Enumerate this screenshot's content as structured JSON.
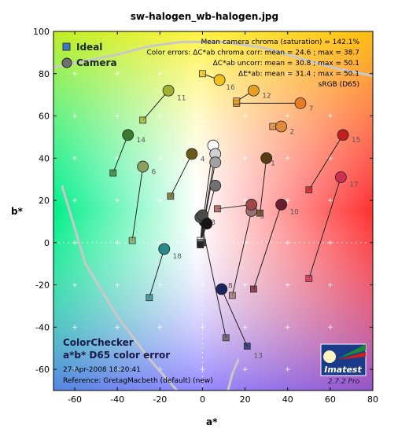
{
  "title": "sw-halogen_wb-halogen.jpg",
  "chart_data": {
    "type": "scatter",
    "xlabel": "a*",
    "ylabel": "b*",
    "xlim": [
      -70,
      80
    ],
    "ylim": [
      -70,
      100
    ],
    "xticks": [
      -60,
      -40,
      -20,
      0,
      20,
      40,
      60,
      80
    ],
    "yticks": [
      -60,
      -40,
      -20,
      0,
      20,
      40,
      60,
      80,
      100
    ],
    "legend": [
      {
        "label": "Ideal",
        "marker": "square"
      },
      {
        "label": "Camera",
        "marker": "circle"
      }
    ],
    "stats": [
      "Mean camera chroma (saturation) = 142.1%",
      "Color errors:  ΔC*ab chroma corr:  mean = 24.6 ;  max = 38.7",
      "ΔC*ab uncorr:  mean = 30.8 ;  max = 50.1",
      "ΔE*ab:  mean = 31.4 ;  max = 50.1",
      "sRGB (D65)"
    ],
    "bottom_text": {
      "line1": "ColorChecker",
      "line2": "a*b* D65 color error",
      "date": "27-Apr-2008 18:20:41",
      "reference": "Reference: GretagMacbeth (default) (new)"
    },
    "logo": {
      "name": "Imatest",
      "version": "2.7.2  Pro"
    },
    "patches": [
      {
        "id": 1,
        "ideal": [
          27,
          14
        ],
        "camera": [
          30,
          40
        ],
        "color": "#5a3a12"
      },
      {
        "id": 2,
        "ideal": [
          33,
          55
        ],
        "camera": [
          37,
          55
        ],
        "color": "#e08a3a"
      },
      {
        "id": 3,
        "ideal": [
          0,
          0
        ],
        "camera": [
          1,
          10
        ],
        "color": "#111111"
      },
      {
        "id": 4,
        "ideal": [
          -15,
          22
        ],
        "camera": [
          -5,
          42
        ],
        "color": "#6a5a18"
      },
      {
        "id": 5,
        "ideal": [
          14,
          -25
        ],
        "camera": [
          23,
          15
        ],
        "color": "#9a7070"
      },
      {
        "id": 6,
        "ideal": [
          -33,
          1
        ],
        "camera": [
          -28,
          36
        ],
        "color": "#8aa060"
      },
      {
        "id": 7,
        "ideal": [
          16,
          66
        ],
        "camera": [
          46,
          66
        ],
        "color": "#e87b25"
      },
      {
        "id": 8,
        "ideal": [
          11,
          -45
        ],
        "camera": [
          -1,
          12
        ],
        "color": "#555555"
      },
      {
        "id": 9,
        "ideal": [
          7,
          16
        ],
        "camera": [
          23,
          18
        ],
        "color": "#a04848"
      },
      {
        "id": 10,
        "ideal": [
          24,
          -22
        ],
        "camera": [
          37,
          18
        ],
        "color": "#6a1e2c"
      },
      {
        "id": 11,
        "ideal": [
          -28,
          58
        ],
        "camera": [
          -16,
          72
        ],
        "color": "#a0b030"
      },
      {
        "id": 12,
        "ideal": [
          16,
          67
        ],
        "camera": [
          24,
          72
        ],
        "color": "#e8a020"
      },
      {
        "id": 13,
        "ideal": [
          21,
          -49
        ],
        "camera": [
          9,
          -22
        ],
        "color": "#1a2560"
      },
      {
        "id": 14,
        "ideal": [
          -42,
          33
        ],
        "camera": [
          -35,
          51
        ],
        "color": "#3a7a30"
      },
      {
        "id": 15,
        "ideal": [
          50,
          25
        ],
        "camera": [
          66,
          51
        ],
        "color": "#c02020"
      },
      {
        "id": 16,
        "ideal": [
          0,
          80
        ],
        "camera": [
          8,
          77
        ],
        "color": "#f0c020"
      },
      {
        "id": 17,
        "ideal": [
          50,
          -17
        ],
        "camera": [
          65,
          31
        ],
        "color": "#d03050"
      },
      {
        "id": 18,
        "ideal": [
          -25,
          -26
        ],
        "camera": [
          -18,
          -3
        ],
        "color": "#2a8a8a"
      },
      {
        "id": 19,
        "ideal": [
          -1,
          1
        ],
        "camera": [
          5,
          46
        ],
        "color": "#ffffff"
      },
      {
        "id": 20,
        "ideal": [
          -1,
          0
        ],
        "camera": [
          6,
          42
        ],
        "color": "#d0d0d0"
      },
      {
        "id": 21,
        "ideal": [
          -1,
          0
        ],
        "camera": [
          6,
          38
        ],
        "color": "#a0a0a0"
      },
      {
        "id": 22,
        "ideal": [
          -1,
          0
        ],
        "camera": [
          6,
          27
        ],
        "color": "#707070"
      },
      {
        "id": 23,
        "ideal": [
          -1,
          -1
        ],
        "camera": [
          0,
          13
        ],
        "color": "#4a4a4a"
      },
      {
        "id": 24,
        "ideal": [
          -1,
          -1
        ],
        "camera": [
          2,
          9
        ],
        "color": "#151515"
      }
    ],
    "labels": [
      {
        "text": "1",
        "at": [
          32,
          38
        ]
      },
      {
        "text": "2",
        "at": [
          41,
          53
        ]
      },
      {
        "text": "3",
        "at": [
          4,
          10
        ]
      },
      {
        "text": "4",
        "at": [
          -1,
          40
        ]
      },
      {
        "text": "5",
        "at": [
          27,
          13
        ]
      },
      {
        "text": "6",
        "at": [
          -24,
          34
        ]
      },
      {
        "text": "7",
        "at": [
          50,
          64
        ]
      },
      {
        "text": "8",
        "at": [
          12,
          -20
        ]
      },
      {
        "text": "10",
        "at": [
          41,
          15
        ]
      },
      {
        "text": "11",
        "at": [
          -12,
          69
        ]
      },
      {
        "text": "12",
        "at": [
          28,
          70
        ]
      },
      {
        "text": "13",
        "at": [
          24,
          -53
        ]
      },
      {
        "text": "14",
        "at": [
          -31,
          49
        ]
      },
      {
        "text": "15",
        "at": [
          70,
          49
        ]
      },
      {
        "text": "16",
        "at": [
          11,
          74
        ]
      },
      {
        "text": "17",
        "at": [
          69,
          28
        ]
      },
      {
        "text": "18",
        "at": [
          -14,
          -6
        ]
      }
    ],
    "srgb_gamut_curve": [
      [
        -66,
        27
      ],
      [
        -55,
        -10
      ],
      [
        -40,
        -35
      ],
      [
        -25,
        -55
      ],
      [
        -12,
        -70
      ]
    ],
    "upper_curve": [
      [
        -70,
        83
      ],
      [
        -55,
        86
      ],
      [
        -40,
        89
      ],
      [
        -25,
        93
      ],
      [
        -10,
        95
      ],
      [
        10,
        95
      ],
      [
        30,
        92
      ],
      [
        50,
        86
      ],
      [
        65,
        82
      ],
      [
        80,
        79
      ]
    ],
    "lower_right_curve": [
      [
        12,
        -70
      ],
      [
        14,
        -62
      ],
      [
        17,
        -55
      ]
    ]
  }
}
